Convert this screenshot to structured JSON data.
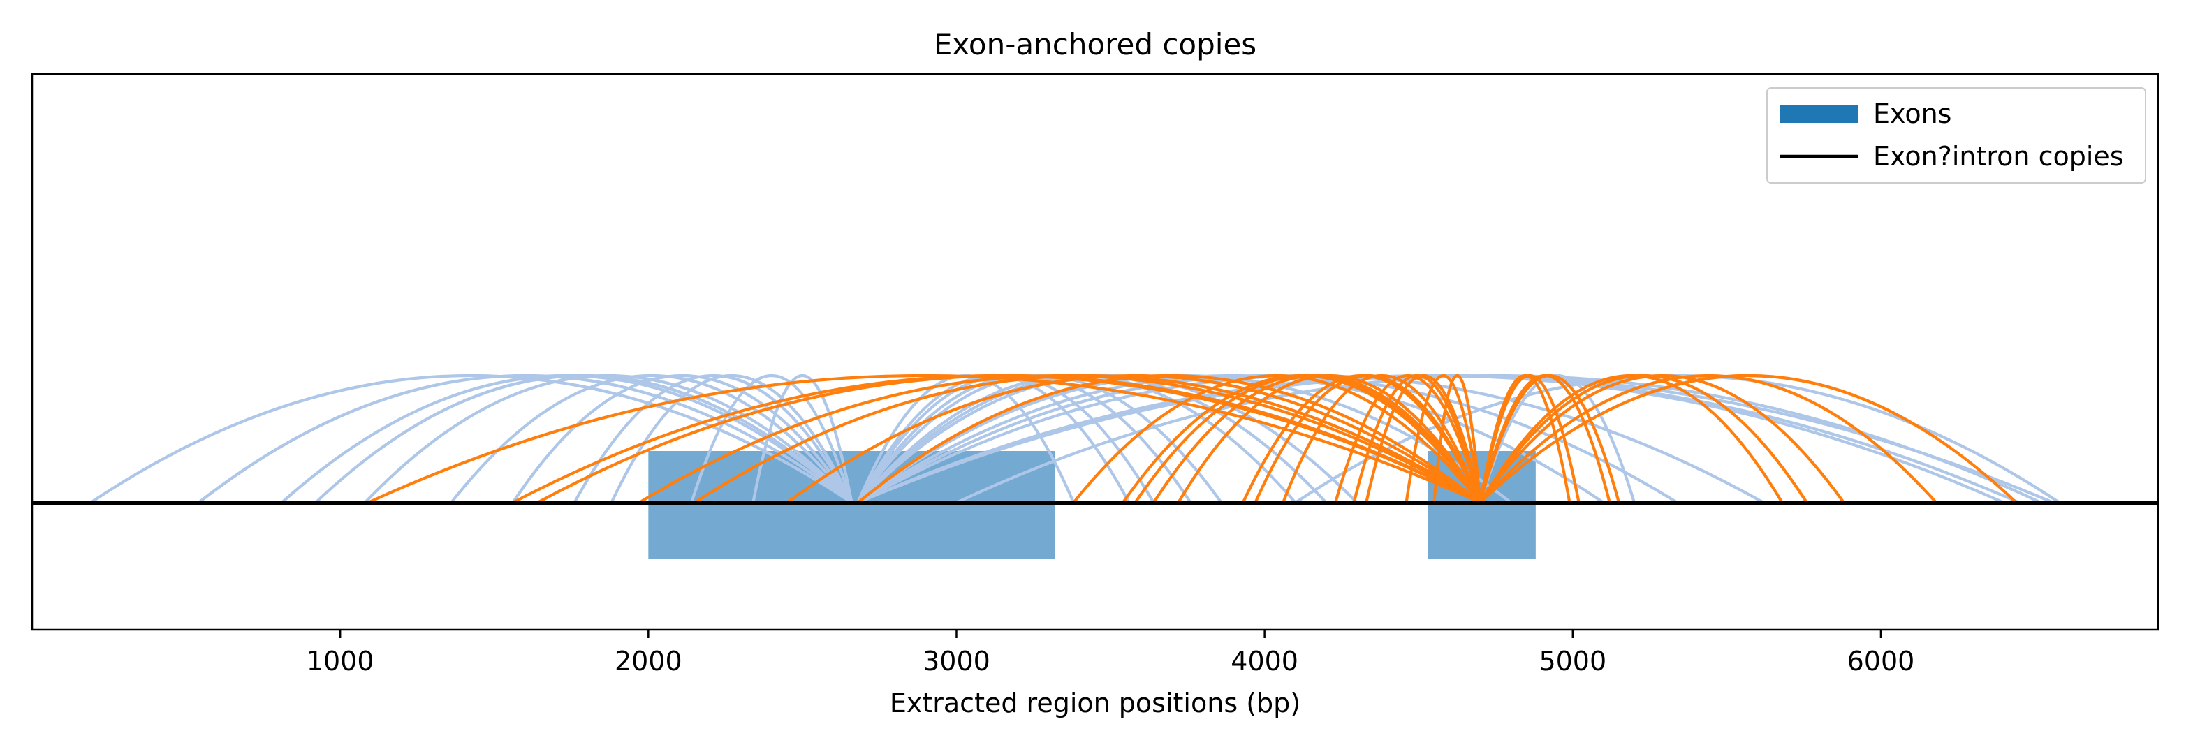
{
  "chart_data": {
    "type": "arc",
    "title": "Exon-anchored copies",
    "xlabel": "Extracted region positions (bp)",
    "ylabel": "",
    "xlim": [
      0,
      6900
    ],
    "xticks": [
      1000,
      2000,
      3000,
      4000,
      5000,
      6000
    ],
    "grid": false,
    "legend": {
      "placement": "top-right",
      "entries": [
        "Exons",
        "Exon?intron copies"
      ]
    },
    "colors": {
      "exon": "#74aad1",
      "legend_exon": "#1f77b4",
      "intron_line": "#000000",
      "arc_light": "#aec7e8",
      "arc_orange": "#ff7f0e"
    },
    "exons": [
      {
        "start": 2000,
        "end": 3320
      },
      {
        "start": 4530,
        "end": 4880
      }
    ],
    "series": [
      {
        "color_key": "arc_light",
        "arcs": [
          [
            190,
            2660
          ],
          [
            540,
            2660
          ],
          [
            810,
            2660
          ],
          [
            920,
            2660
          ],
          [
            1080,
            2660
          ],
          [
            1360,
            2660
          ],
          [
            1560,
            2660
          ],
          [
            1760,
            2660
          ],
          [
            1880,
            2660
          ],
          [
            2140,
            2660
          ],
          [
            2340,
            2660
          ],
          [
            2680,
            3380
          ],
          [
            2680,
            3560
          ],
          [
            2680,
            3640
          ],
          [
            2680,
            3760
          ],
          [
            2680,
            3860
          ],
          [
            2680,
            4100
          ],
          [
            2680,
            4200
          ],
          [
            2680,
            4300
          ],
          [
            2680,
            4800
          ],
          [
            2680,
            5100
          ],
          [
            2680,
            5340
          ],
          [
            2680,
            5620
          ],
          [
            2680,
            6450
          ],
          [
            2680,
            6560
          ],
          [
            2680,
            6400
          ],
          [
            3000,
            6520
          ],
          [
            4100,
            6580
          ],
          [
            4700,
            5200
          ]
        ]
      },
      {
        "color_key": "arc_orange",
        "arcs": [
          [
            1090,
            4700
          ],
          [
            1560,
            4700
          ],
          [
            1640,
            4700
          ],
          [
            1970,
            4700
          ],
          [
            2150,
            4700
          ],
          [
            2450,
            4700
          ],
          [
            2680,
            4700
          ],
          [
            3380,
            4700
          ],
          [
            3540,
            4700
          ],
          [
            3580,
            4700
          ],
          [
            3640,
            4700
          ],
          [
            3720,
            4700
          ],
          [
            3930,
            4700
          ],
          [
            3970,
            4700
          ],
          [
            4060,
            4700
          ],
          [
            4230,
            4700
          ],
          [
            4290,
            4700
          ],
          [
            4330,
            4700
          ],
          [
            4460,
            4700
          ],
          [
            4550,
            4700
          ],
          [
            4700,
            4990
          ],
          [
            4700,
            5020
          ],
          [
            4700,
            5120
          ],
          [
            4700,
            5150
          ],
          [
            4700,
            5680
          ],
          [
            4700,
            5760
          ],
          [
            4700,
            5880
          ],
          [
            4700,
            6180
          ],
          [
            4700,
            6440
          ]
        ]
      }
    ]
  }
}
